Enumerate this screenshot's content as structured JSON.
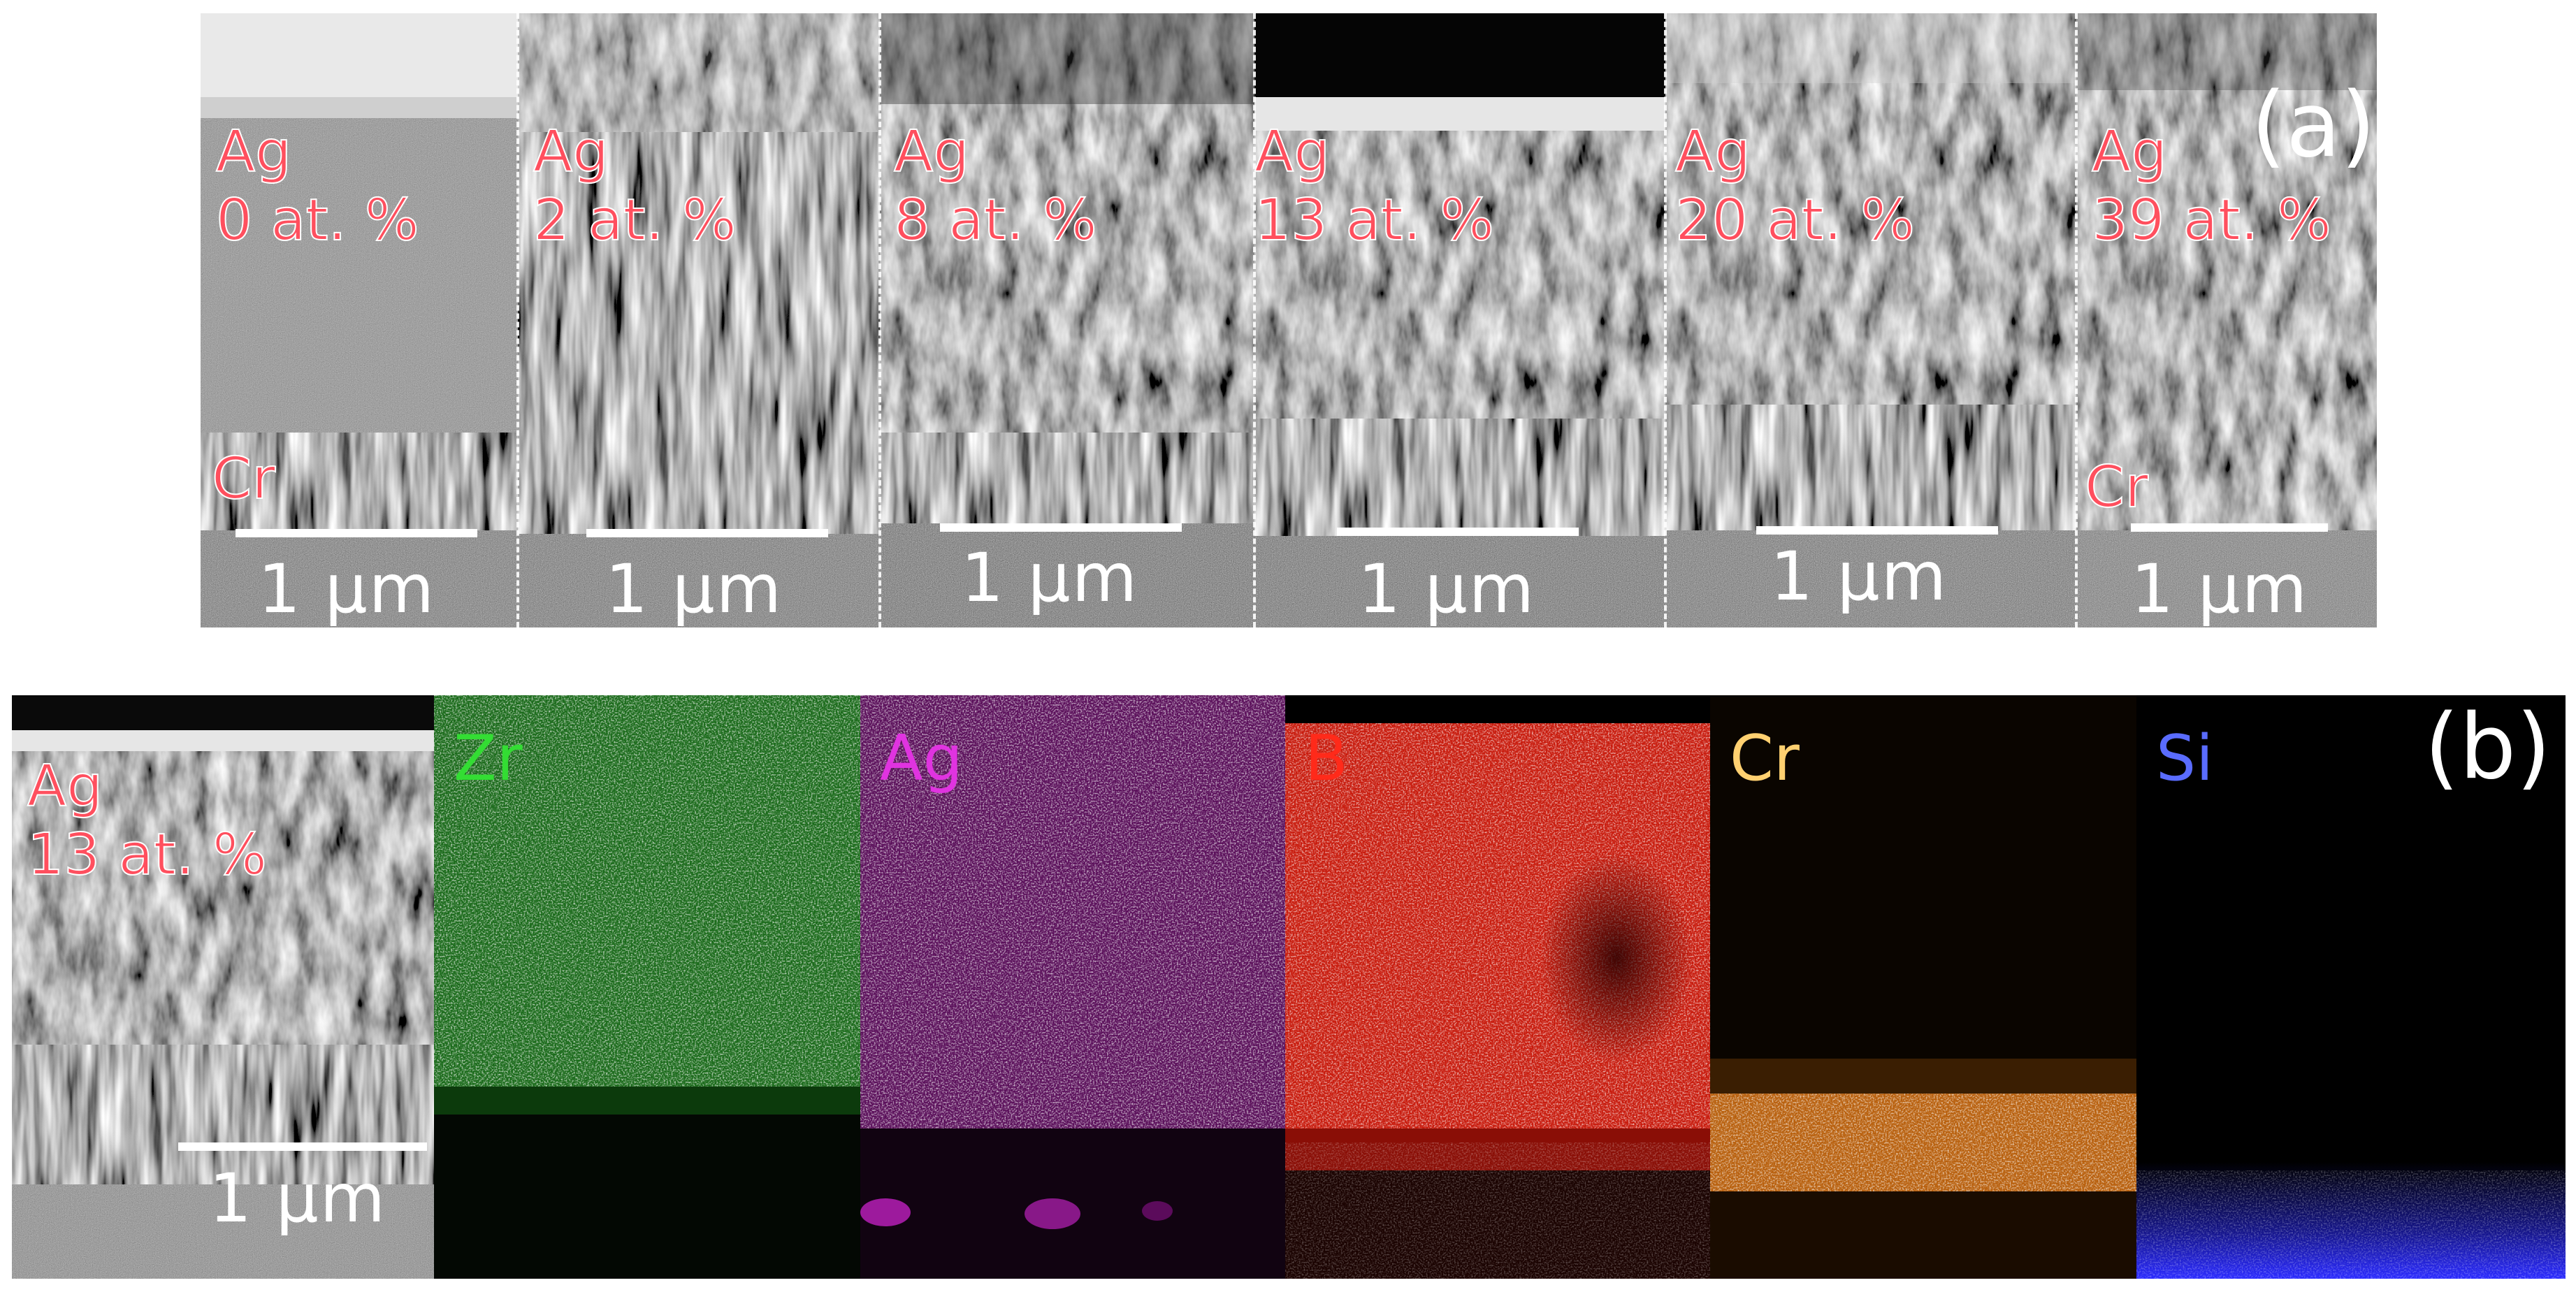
{
  "figure_a": {
    "tag": "(a)",
    "panels": [
      {
        "element": "Ag",
        "conc": "0 at. %",
        "scale": "1 μm",
        "layer_label": "Cr"
      },
      {
        "element": "Ag",
        "conc": "2 at. %",
        "scale": "1 μm"
      },
      {
        "element": "Ag",
        "conc": "8 at. %",
        "scale": "1 μm"
      },
      {
        "element": "Ag",
        "conc": "13 at. %",
        "scale": "1 μm"
      },
      {
        "element": "Ag",
        "conc": "20 at. %",
        "scale": "1 μm"
      },
      {
        "element": "Ag",
        "conc": "39 at. %",
        "scale": "1 μm",
        "layer_label": "Cr"
      }
    ]
  },
  "figure_b": {
    "tag": "(b)",
    "sem": {
      "element": "Ag",
      "conc": "13 at. %",
      "scale": "1 μm"
    },
    "maps": [
      {
        "label": "Zr",
        "color": "#33dd33"
      },
      {
        "label": "Ag",
        "color": "#e033e0"
      },
      {
        "label": "B",
        "color": "#ff2a1a"
      },
      {
        "label": "Cr",
        "color": "#ffd070"
      },
      {
        "label": "Si",
        "color": "#5a6cff"
      }
    ]
  }
}
